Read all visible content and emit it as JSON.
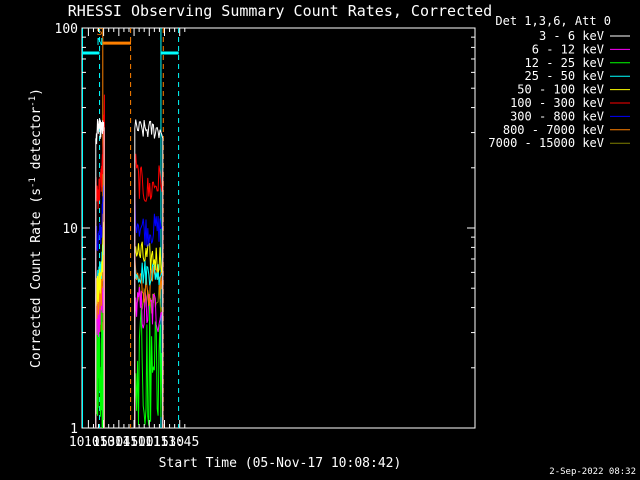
{
  "chart_data": {
    "type": "line",
    "title": "RHESSI Observing Summary Count Rates, Corrected",
    "xlabel": "Start Time (05-Nov-17 10:08:42)",
    "ylabel": "Corrected Count Rate (s",
    "ylabel_sup1": "-1",
    "ylabel_mid": " detector",
    "ylabel_sup2": "-1",
    "ylabel_end": ")",
    "x_unit": "minutes",
    "xlim": [
      608.7,
      996
    ],
    "ylim": [
      1,
      100
    ],
    "y_scale": "log",
    "x_ticks": [
      {
        "minute": 615,
        "label": "10:15"
      },
      {
        "minute": 630,
        "label": "10:30"
      },
      {
        "minute": 645,
        "label": "10:45"
      },
      {
        "minute": 660,
        "label": "11:00"
      },
      {
        "minute": 675,
        "label": "11:15"
      },
      {
        "minute": 690,
        "label": "11:30"
      },
      {
        "minute": 705,
        "label": "11:45"
      }
    ],
    "y_ticks": [
      {
        "value": 1,
        "label": "1"
      },
      {
        "value": 10,
        "label": "10"
      },
      {
        "value": 100,
        "label": "100"
      }
    ],
    "legend_header": "Det 1,3,6, Att 0",
    "legend_placement": "top-right, outside plot",
    "series": [
      {
        "name": "3 - 6 keV",
        "color": "#ffffff",
        "segments": [
          {
            "x": [
              622.3,
              623.5,
              625,
              627,
              629.2,
              630.5
            ],
            "y": [
              26,
              31,
              32,
              31,
              31,
              33
            ]
          },
          {
            "x": [
              660.7,
              662,
              665,
              670,
              675,
              680,
              685,
              688.3
            ],
            "y": [
              30,
              32,
              31,
              31,
              31,
              31,
              31,
              30
            ]
          }
        ]
      },
      {
        "name": "6 - 12 keV",
        "color": "#ff00ff",
        "segments": [
          {
            "x": [
              622.3,
              624,
              626,
              628,
              629.5,
              630.5
            ],
            "y": [
              3.6,
              3.8,
              3.6,
              4.0,
              4.5,
              5.0
            ]
          },
          {
            "x": [
              660.7,
              663,
              668,
              673,
              678,
              683,
              688.3
            ],
            "y": [
              4.2,
              4.0,
              3.9,
              3.8,
              3.9,
              3.8,
              3.8
            ]
          }
        ]
      },
      {
        "name": "12 - 25 keV",
        "color": "#00ff00",
        "segments": [
          {
            "x": [
              622.3,
              623.5,
              625,
              626.5,
              628,
              629.5
            ],
            "y": [
              2.3,
              2.2,
              2.4,
              2.2,
              2.3,
              2.5
            ]
          },
          {
            "x": [
              660.7,
              663,
              668,
              673,
              678,
              683,
              688.3
            ],
            "y": [
              2.8,
              2.6,
              2.7,
              2.5,
              2.6,
              2.5,
              2.6
            ]
          }
        ]
      },
      {
        "name": "25 - 50 keV",
        "color": "#00ffff",
        "segments": [
          {
            "x": [
              622.3,
              624,
              626,
              628,
              629.5,
              630.5
            ],
            "y": [
              5.4,
              5.2,
              5.8,
              6.5,
              8,
              10
            ]
          },
          {
            "x": [
              660.7,
              663,
              668,
              673,
              678,
              683,
              688.3
            ],
            "y": [
              6.5,
              6.2,
              6.0,
              6.0,
              6.1,
              6.0,
              6.2
            ]
          }
        ]
      },
      {
        "name": "50 - 100 keV",
        "color": "#ffff00",
        "segments": [
          {
            "x": [
              622.3,
              624,
              626,
              628,
              629.5,
              630.5
            ],
            "y": [
              4.8,
              4.9,
              5.2,
              6.0,
              8,
              11
            ]
          },
          {
            "x": [
              660.7,
              663,
              668,
              673,
              678,
              683,
              688.3
            ],
            "y": [
              8.2,
              7.6,
              7.2,
              7.0,
              7.1,
              7.0,
              7.2
            ]
          }
        ]
      },
      {
        "name": "100 - 300 keV",
        "color": "#ff0000",
        "segments": [
          {
            "x": [
              622.3,
              623.5,
              625,
              626.5,
              628,
              629.2,
              630.0,
              630.8
            ],
            "y": [
              15,
              15.5,
              15,
              16,
              18,
              22,
              32,
              40
            ]
          },
          {
            "x": [
              660.7,
              662,
              664,
              667,
              670,
              673,
              676,
              680,
              684,
              688.3
            ],
            "y": [
              22,
              19,
              17.5,
              16.5,
              16,
              15,
              15.5,
              16.5,
              17,
              18
            ]
          }
        ]
      },
      {
        "name": "300 - 800 keV",
        "color": "#0000ff",
        "segments": [
          {
            "x": [
              622.3,
              624,
              626,
              628,
              629.5,
              630.5
            ],
            "y": [
              8.8,
              8.5,
              9,
              10,
              13,
              17
            ]
          },
          {
            "x": [
              660.7,
              662,
              665,
              669,
              673,
              677,
              681,
              685,
              688.3
            ],
            "y": [
              12.5,
              11.5,
              10.5,
              10,
              9.6,
              9.8,
              9.9,
              10,
              10.4
            ]
          }
        ]
      },
      {
        "name": "800 - 7000 keV",
        "color": "#ff8000",
        "segments": [
          {
            "x": [
              622.3,
              624,
              626,
              628,
              629.5,
              630.5
            ],
            "y": [
              4.4,
              4.3,
              4.5,
              5.0,
              6.5,
              8.5
            ]
          },
          {
            "x": [
              660.7,
              663,
              668,
              673,
              678,
              683,
              688.3
            ],
            "y": [
              5.8,
              5.5,
              5.3,
              5.1,
              5.2,
              5.2,
              5.3
            ]
          }
        ]
      },
      {
        "name": "7000 - 15000 keV",
        "color": "#808000",
        "segments": [
          {
            "x": [
              622.3,
              625,
              628,
              630.5
            ],
            "y": [
              3.2,
              3.3,
              3.5,
              4.0
            ]
          },
          {
            "x": [
              660.7,
              665,
              670,
              675,
              680,
              688.3
            ],
            "y": [
              4.6,
              4.4,
              4.3,
              4.3,
              4.4,
              4.4
            ]
          }
        ]
      }
    ],
    "flag_bars": [
      {
        "color": "#00ffff",
        "value": 75,
        "x": [
          609,
          626
        ]
      },
      {
        "color": "#ff8000",
        "value": 84,
        "x": [
          629,
          657
        ]
      },
      {
        "color": "#00ffff",
        "value": 75,
        "x": [
          686.5,
          704
        ]
      }
    ],
    "flag_labels": [
      {
        "text": "S",
        "color": "#ff8000",
        "minute": 626,
        "value": 92
      },
      {
        "text": "N",
        "color": "#00ffff",
        "minute": 626.3,
        "value": 82
      }
    ],
    "cyan_solid_lines": [
      609.2,
      686.5
    ],
    "cyan_dashed_lines": [
      626.0,
      703.9
    ],
    "orange_solid_lines": [
      629.2
    ],
    "orange_dashed_lines": [
      656.6,
      688.8
    ]
  },
  "timestamp": "2-Sep-2022 08:32"
}
